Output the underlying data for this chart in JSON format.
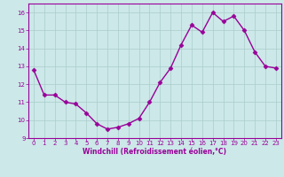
{
  "x": [
    0,
    1,
    2,
    3,
    4,
    5,
    6,
    7,
    8,
    9,
    10,
    11,
    12,
    13,
    14,
    15,
    16,
    17,
    18,
    19,
    20,
    21,
    22,
    23
  ],
  "y": [
    12.8,
    11.4,
    11.4,
    11.0,
    10.9,
    10.4,
    9.8,
    9.5,
    9.6,
    9.8,
    10.1,
    11.0,
    12.1,
    12.9,
    14.2,
    15.3,
    14.9,
    16.0,
    15.5,
    15.8,
    15.0,
    13.8,
    13.0,
    12.9
  ],
  "line_color": "#990099",
  "marker": "D",
  "markersize": 2.5,
  "linewidth": 1.0,
  "bg_color": "#cce8e8",
  "grid_color": "#aacccc",
  "xlabel": "Windchill (Refroidissement éolien,°C)",
  "xlabel_color": "#990099",
  "tick_color": "#990099",
  "ylim": [
    9,
    16.5
  ],
  "yticks": [
    9,
    10,
    11,
    12,
    13,
    14,
    15,
    16
  ],
  "xlim": [
    -0.5,
    23.5
  ],
  "xticks": [
    0,
    1,
    2,
    3,
    4,
    5,
    6,
    7,
    8,
    9,
    10,
    11,
    12,
    13,
    14,
    15,
    16,
    17,
    18,
    19,
    20,
    21,
    22,
    23
  ],
  "spine_color": "#990099",
  "figsize": [
    3.2,
    2.0
  ],
  "dpi": 100
}
